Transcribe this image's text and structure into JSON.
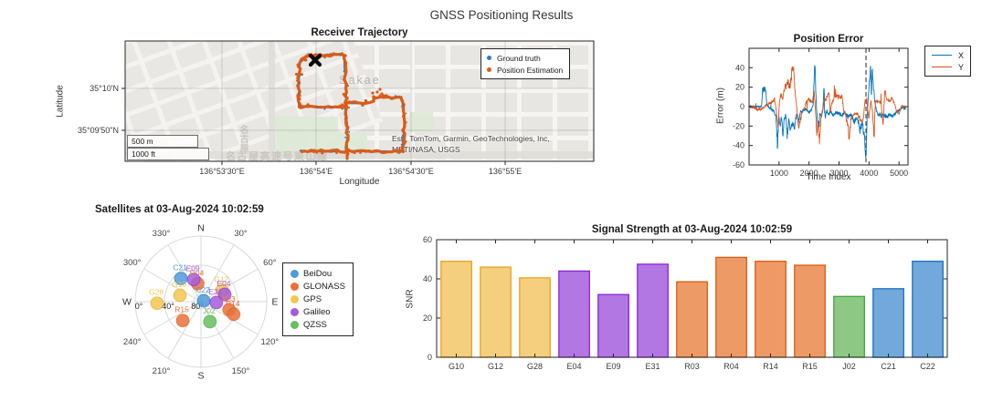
{
  "figure_title": "GNSS Positioning Results",
  "constellation_colors": {
    "BeiDou": {
      "dot": "#4D9BD9",
      "bar_fill": "#72A9DA",
      "bar_edge": "#1A70C2"
    },
    "GLONASS": {
      "dot": "#E9713B",
      "bar_fill": "#EE9A66",
      "bar_edge": "#DE5A10"
    },
    "GPS": {
      "dot": "#F2C64E",
      "bar_fill": "#F4CF7D",
      "bar_edge": "#E8A51F"
    },
    "Galileo": {
      "dot": "#A55CDB",
      "bar_fill": "#B377E3",
      "bar_edge": "#8D23DB"
    },
    "QZSS": {
      "dot": "#66BF5E",
      "bar_fill": "#8DC983",
      "bar_edge": "#43A339"
    }
  },
  "chart_data": [
    {
      "id": "trajectory_map",
      "type": "scatter",
      "title": "Receiver Trajectory",
      "xlabel": "Longitude",
      "ylabel": "Latitude",
      "x_tick_labels": [
        "136°53'30\"E",
        "136°54'E",
        "136°54'30\"E",
        "136°55'E"
      ],
      "y_tick_labels": [
        "35°10'N",
        "35°09'50\"N"
      ],
      "place_label": "Sakae",
      "road_label": "名古屋高速号東山線",
      "road_label_vertical": "名古屋",
      "attribution": [
        "Esri, TomTom, Garmin, GeoTechnologies, Inc,",
        "METI/NASA, USGS"
      ],
      "scalebar": [
        "500 m",
        "1000 ft"
      ],
      "legend": [
        {
          "label": "Ground truth",
          "color": "#2E7CBF"
        },
        {
          "label": "Position Estimation",
          "color": "#DC5B16"
        }
      ],
      "colors": {
        "estimation": "#DC5B16",
        "ground_truth": "#2E7CBF",
        "marker": "#0a0a0a"
      },
      "segments": [
        [
          [
            200,
            16
          ],
          [
            240,
            15
          ]
        ],
        [
          [
            240,
            15
          ],
          [
            241,
            40
          ],
          [
            242,
            72
          ],
          [
            243,
            100
          ],
          [
            243,
            129
          ]
        ],
        [
          [
            200,
            16
          ],
          [
            191,
            23
          ],
          [
            190,
            45
          ],
          [
            190,
            72
          ]
        ],
        [
          [
            190,
            72
          ],
          [
            215,
            72
          ],
          [
            242,
            72
          ]
        ],
        [
          [
            242,
            68
          ],
          [
            258,
            68
          ],
          [
            271,
            67
          ],
          [
            272,
            62
          ],
          [
            288,
            62
          ],
          [
            303,
            62
          ]
        ],
        [
          [
            303,
            62
          ],
          [
            305,
            80
          ],
          [
            305,
            95
          ],
          [
            304,
            121
          ]
        ],
        [
          [
            304,
            121
          ],
          [
            270,
            121
          ],
          [
            243,
            121
          ],
          [
            215,
            121
          ],
          [
            192,
            120
          ]
        ]
      ],
      "scatter_points": [
        [
          276,
          56
        ],
        [
          281,
          58
        ],
        [
          286,
          60
        ],
        [
          271,
          57
        ],
        [
          279,
          53
        ]
      ],
      "marker_x": [
        208,
        21
      ]
    },
    {
      "id": "position_error",
      "type": "line",
      "title": "Position Error",
      "xlabel": "Time Index",
      "ylabel": "Error (m)",
      "xlim": [
        0,
        5300
      ],
      "ylim": [
        -60,
        60
      ],
      "x_ticks": [
        1000,
        2000,
        3000,
        4000,
        5000
      ],
      "y_ticks": [
        -60,
        -40,
        -20,
        0,
        20,
        40
      ],
      "dashed_line_x": 3900,
      "dashed_line_color": "#4a4a4a",
      "series": [
        {
          "name": "X",
          "color": "#0072BD",
          "points": [
            [
              0,
              0
            ],
            [
              200,
              0
            ],
            [
              380,
              0
            ],
            [
              420,
              1
            ],
            [
              450,
              17
            ],
            [
              560,
              18
            ],
            [
              590,
              2
            ],
            [
              700,
              -2
            ],
            [
              820,
              -4
            ],
            [
              900,
              -12
            ],
            [
              950,
              -41
            ],
            [
              990,
              -8
            ],
            [
              1040,
              -20
            ],
            [
              1080,
              -10
            ],
            [
              1130,
              -27
            ],
            [
              1180,
              -12
            ],
            [
              1230,
              -8
            ],
            [
              1270,
              -30
            ],
            [
              1320,
              -14
            ],
            [
              1380,
              -24
            ],
            [
              1450,
              -18
            ],
            [
              1520,
              -22
            ],
            [
              1580,
              -8
            ],
            [
              1650,
              -14
            ],
            [
              1720,
              -6
            ],
            [
              1800,
              -4
            ],
            [
              1900,
              -3
            ],
            [
              2000,
              -6
            ],
            [
              2080,
              -3
            ],
            [
              2140,
              2
            ],
            [
              2190,
              50
            ],
            [
              2230,
              10
            ],
            [
              2270,
              -12
            ],
            [
              2310,
              -26
            ],
            [
              2360,
              -6
            ],
            [
              2410,
              -10
            ],
            [
              2460,
              -3
            ],
            [
              2500,
              20
            ],
            [
              2540,
              -12
            ],
            [
              2590,
              -4
            ],
            [
              2650,
              -8
            ],
            [
              2720,
              -4
            ],
            [
              2800,
              -9
            ],
            [
              2900,
              -6
            ],
            [
              3000,
              -7
            ],
            [
              3100,
              -9
            ],
            [
              3200,
              -6
            ],
            [
              3300,
              -11
            ],
            [
              3400,
              -8
            ],
            [
              3500,
              -16
            ],
            [
              3600,
              -11
            ],
            [
              3700,
              -24
            ],
            [
              3780,
              -16
            ],
            [
              3850,
              -34
            ],
            [
              3900,
              -50
            ],
            [
              3940,
              -10
            ],
            [
              3970,
              6
            ],
            [
              4010,
              24
            ],
            [
              4050,
              38
            ],
            [
              4080,
              12
            ],
            [
              4110,
              40
            ],
            [
              4150,
              18
            ],
            [
              4200,
              4
            ],
            [
              4260,
              -6
            ],
            [
              4340,
              -9
            ],
            [
              4420,
              -7
            ],
            [
              4500,
              -9
            ],
            [
              4600,
              -11
            ],
            [
              4700,
              -8
            ],
            [
              4800,
              -9
            ],
            [
              4900,
              -6
            ],
            [
              5000,
              -4
            ],
            [
              5100,
              -1
            ],
            [
              5200,
              -2
            ]
          ]
        },
        {
          "name": "Y",
          "color": "#D95319",
          "points": [
            [
              0,
              0
            ],
            [
              150,
              -1
            ],
            [
              300,
              -3
            ],
            [
              450,
              -2
            ],
            [
              600,
              2
            ],
            [
              750,
              4
            ],
            [
              850,
              8
            ],
            [
              920,
              -6
            ],
            [
              970,
              -25
            ],
            [
              1010,
              4
            ],
            [
              1060,
              12
            ],
            [
              1120,
              8
            ],
            [
              1180,
              18
            ],
            [
              1240,
              22
            ],
            [
              1300,
              26
            ],
            [
              1360,
              20
            ],
            [
              1420,
              34
            ],
            [
              1470,
              45
            ],
            [
              1510,
              28
            ],
            [
              1550,
              12
            ],
            [
              1600,
              -4
            ],
            [
              1650,
              -20
            ],
            [
              1700,
              -15
            ],
            [
              1760,
              -8
            ],
            [
              1830,
              -3
            ],
            [
              1900,
              4
            ],
            [
              1970,
              8
            ],
            [
              2040,
              6
            ],
            [
              2110,
              4
            ],
            [
              2170,
              16
            ],
            [
              2220,
              -6
            ],
            [
              2260,
              -30
            ],
            [
              2300,
              -16
            ],
            [
              2350,
              -34
            ],
            [
              2400,
              -12
            ],
            [
              2450,
              -4
            ],
            [
              2520,
              6
            ],
            [
              2590,
              9
            ],
            [
              2660,
              16
            ],
            [
              2710,
              -6
            ],
            [
              2760,
              4
            ],
            [
              2830,
              9
            ],
            [
              2900,
              11
            ],
            [
              3000,
              10
            ],
            [
              3100,
              10
            ],
            [
              3160,
              -4
            ],
            [
              3220,
              -9
            ],
            [
              3290,
              -20
            ],
            [
              3340,
              -34
            ],
            [
              3400,
              -12
            ],
            [
              3470,
              -8
            ],
            [
              3550,
              -6
            ],
            [
              3640,
              -9
            ],
            [
              3720,
              -13
            ],
            [
              3800,
              -16
            ],
            [
              3870,
              8
            ],
            [
              3930,
              4
            ],
            [
              3990,
              -12
            ],
            [
              4060,
              6
            ],
            [
              4120,
              -6
            ],
            [
              4160,
              -28
            ],
            [
              4220,
              6
            ],
            [
              4300,
              5
            ],
            [
              4400,
              4
            ],
            [
              4470,
              -19
            ],
            [
              4530,
              20
            ],
            [
              4590,
              7
            ],
            [
              4680,
              6
            ],
            [
              4760,
              8
            ],
            [
              4840,
              4
            ],
            [
              4920,
              -4
            ],
            [
              5000,
              -7
            ],
            [
              5100,
              2
            ],
            [
              5200,
              -1
            ]
          ]
        }
      ]
    },
    {
      "id": "skyplot",
      "type": "scatter",
      "title": "Satellites at 03-Aug-2024 10:02:59",
      "compass": [
        "N",
        "E",
        "S",
        "W"
      ],
      "azimuth_tick_labels": [
        "30°",
        "60°",
        "120°",
        "150°",
        "210°",
        "240°",
        "300°",
        "330°"
      ],
      "azimuth_tick_values": [
        30,
        60,
        120,
        150,
        210,
        240,
        300,
        330
      ],
      "elevation_tick_labels": [
        "0°",
        "40°",
        "80°"
      ],
      "elevation_rings": [
        0,
        40,
        80
      ],
      "legend_order": [
        "BeiDou",
        "GLONASS",
        "GPS",
        "Galileo",
        "QZSS"
      ],
      "satellites": [
        {
          "id": "C21",
          "constellation": "BeiDou",
          "az": 319,
          "el": 48
        },
        {
          "id": "C22",
          "constellation": "BeiDou",
          "az": 71,
          "el": 86
        },
        {
          "id": "R03",
          "constellation": "GLONASS",
          "az": 106,
          "el": 50
        },
        {
          "id": "R04",
          "constellation": "GLONASS",
          "az": 350,
          "el": 65
        },
        {
          "id": "R14",
          "constellation": "GLONASS",
          "az": 111,
          "el": 42
        },
        {
          "id": "R15",
          "constellation": "GLONASS",
          "az": 224,
          "el": 54
        },
        {
          "id": "G10",
          "constellation": "GPS",
          "az": 287,
          "el": 60
        },
        {
          "id": "G12",
          "constellation": "GPS",
          "az": 62,
          "el": 57
        },
        {
          "id": "G28",
          "constellation": "GPS",
          "az": 268,
          "el": 30
        },
        {
          "id": "E04",
          "constellation": "Galileo",
          "az": 73,
          "el": 56
        },
        {
          "id": "E09",
          "constellation": "Galileo",
          "az": 342,
          "el": 58
        },
        {
          "id": "E31",
          "constellation": "Galileo",
          "az": 93,
          "el": 69
        },
        {
          "id": "J02",
          "constellation": "QZSS",
          "az": 156,
          "el": 60
        }
      ]
    },
    {
      "id": "signal_strength",
      "type": "bar",
      "title": "Signal Strength at 03-Aug-2024 10:02:59",
      "ylabel": "SNR",
      "ylim": [
        0,
        60
      ],
      "y_ticks": [
        0,
        20,
        40,
        60
      ],
      "categories": [
        "G10",
        "G12",
        "G28",
        "E04",
        "E09",
        "E31",
        "R03",
        "R04",
        "R14",
        "R15",
        "J02",
        "C21",
        "C22"
      ],
      "values": [
        49,
        46,
        40.5,
        44,
        32,
        47.5,
        38.5,
        51,
        49,
        47,
        31,
        35,
        49
      ],
      "bar_constellations": [
        "GPS",
        "GPS",
        "GPS",
        "Galileo",
        "Galileo",
        "Galileo",
        "GLONASS",
        "GLONASS",
        "GLONASS",
        "GLONASS",
        "QZSS",
        "BeiDou",
        "BeiDou"
      ]
    }
  ]
}
